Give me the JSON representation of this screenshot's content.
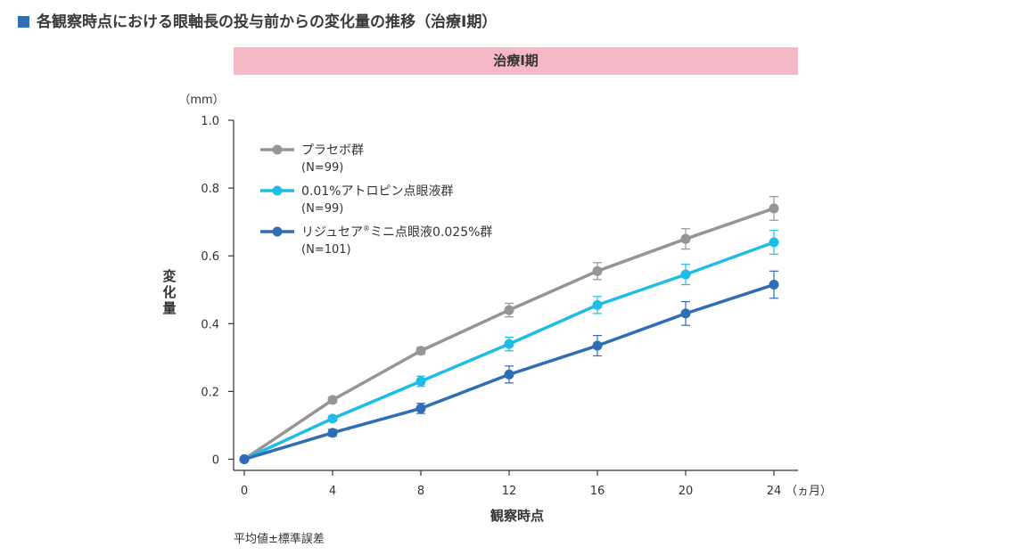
{
  "title": "各観察時点における眼軸長の投与前からの変化量の推移（治療Ⅰ期）",
  "colors": {
    "title_marker": "#2f6db5",
    "banner_bg": "#f6b8c6"
  },
  "chart_data": {
    "type": "line",
    "banner": "治療Ⅰ期",
    "y_unit": "（mm）",
    "ylabel": "変化量",
    "xlabel": "観察時点",
    "x_unit": "（ヵ月）",
    "x": [
      0,
      4,
      8,
      12,
      16,
      20,
      24
    ],
    "x_ticks": [
      "0",
      "4",
      "8",
      "12",
      "16",
      "20",
      "24"
    ],
    "y_ticks": [
      "0",
      "0.2",
      "0.4",
      "0.6",
      "0.8",
      "1.0"
    ],
    "y_tick_values": [
      0,
      0.2,
      0.4,
      0.6,
      0.8,
      1.0
    ],
    "xlim": [
      0,
      24
    ],
    "ylim": [
      0,
      1.0
    ],
    "grid": false,
    "legend_position": "top-left",
    "series": [
      {
        "name": "プラセボ群",
        "n": "(N=99)",
        "color": "#959595",
        "values": [
          0,
          0.175,
          0.32,
          0.44,
          0.555,
          0.65,
          0.74
        ],
        "errors": [
          0,
          0.008,
          0.01,
          0.02,
          0.025,
          0.03,
          0.035
        ]
      },
      {
        "name": "0.01%アトロピン点眼液群",
        "n": "(N=99)",
        "color": "#1fbde6",
        "values": [
          0,
          0.12,
          0.23,
          0.34,
          0.455,
          0.545,
          0.64
        ],
        "errors": [
          0,
          0.008,
          0.015,
          0.02,
          0.025,
          0.03,
          0.035
        ]
      },
      {
        "name": "リジュセア®ミニ点眼液0.025%群",
        "n": "(N=101)",
        "color": "#2f6db5",
        "values": [
          0,
          0.078,
          0.15,
          0.25,
          0.335,
          0.43,
          0.515
        ],
        "errors": [
          0,
          0.01,
          0.015,
          0.025,
          0.03,
          0.035,
          0.04
        ]
      }
    ],
    "footnote": "平均値±標準誤差"
  }
}
